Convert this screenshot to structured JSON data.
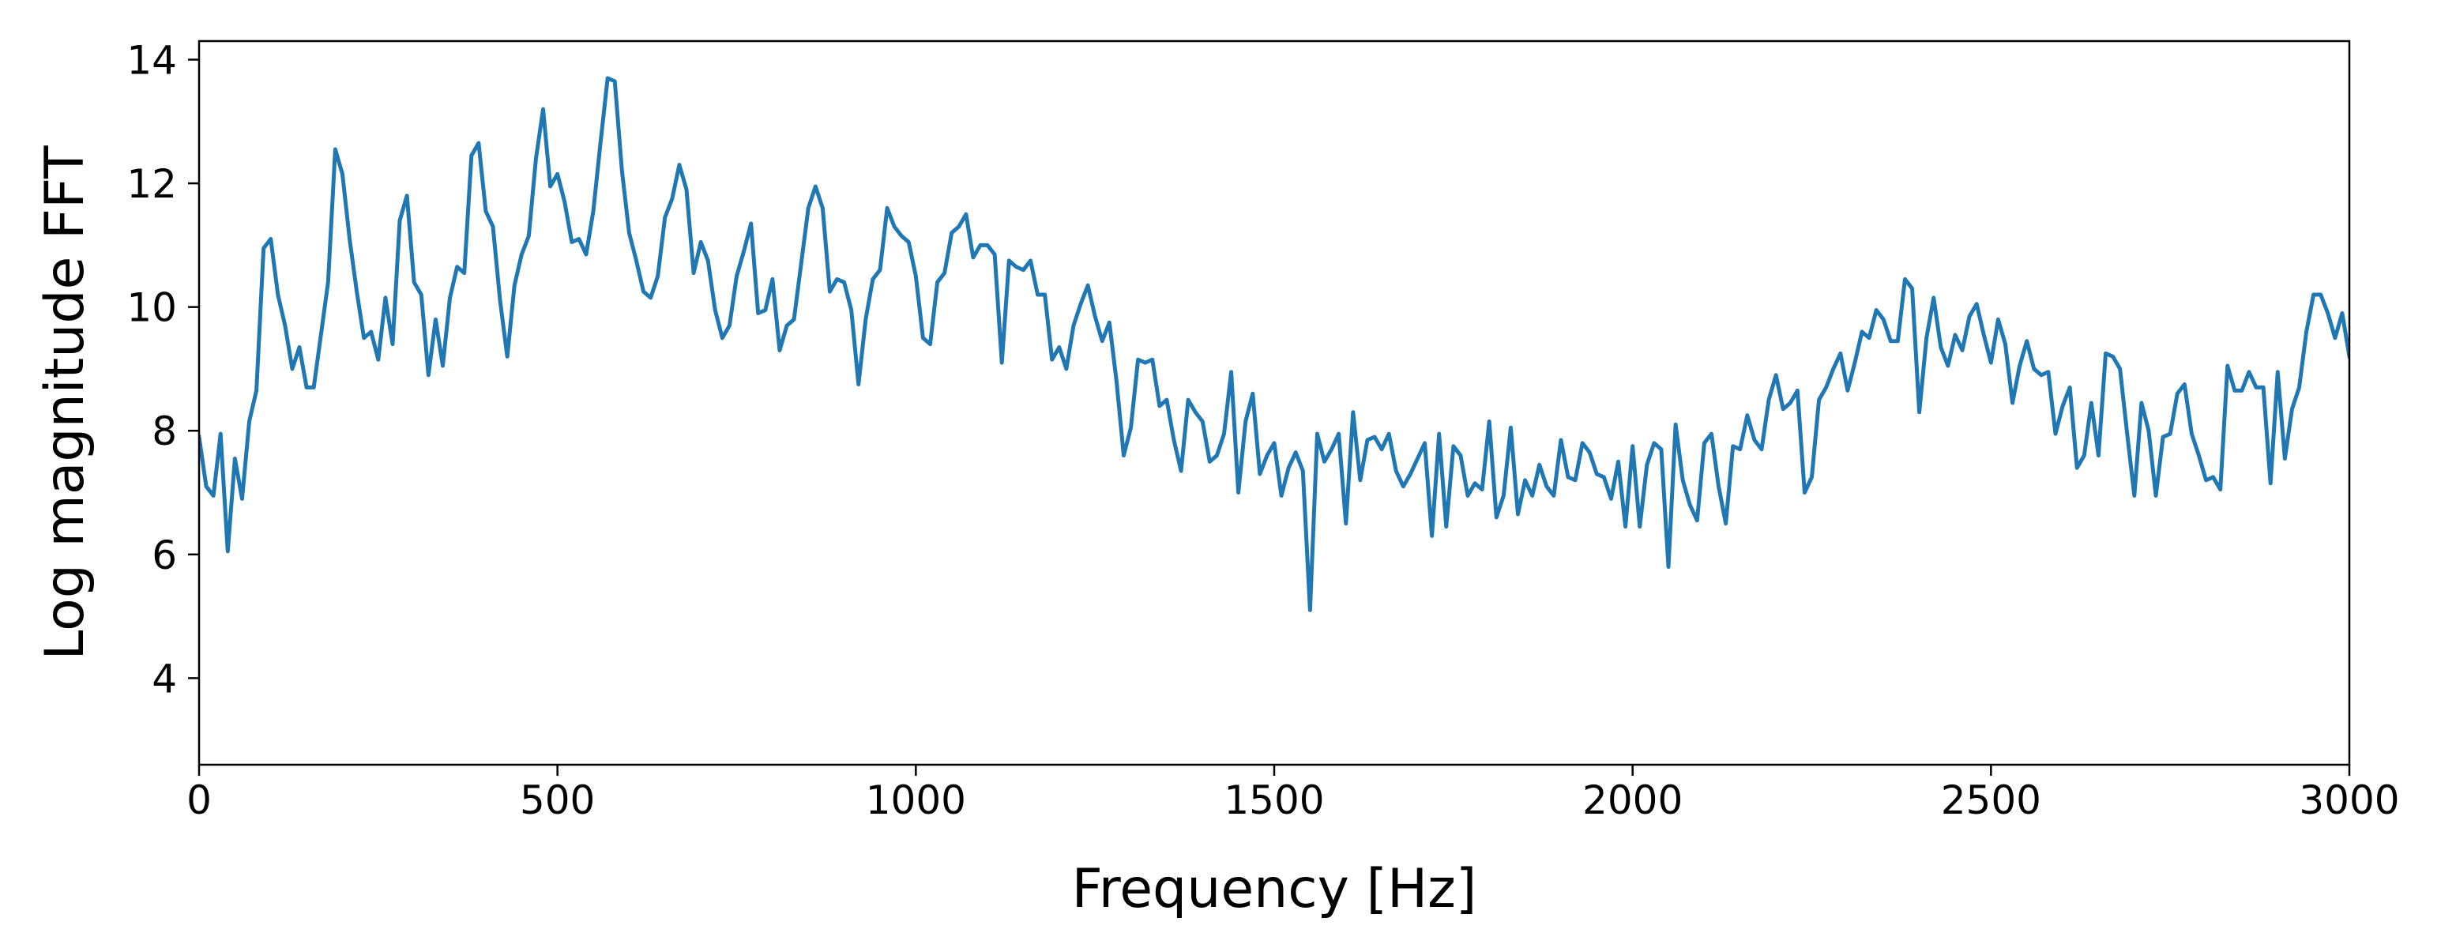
{
  "chart_data": {
    "type": "line",
    "title": "",
    "xlabel": "Frequency [Hz]",
    "ylabel": "Log magnitude FFT",
    "xlim": [
      0,
      3000
    ],
    "ylim": [
      2.6,
      14.3
    ],
    "xticks": [
      0,
      500,
      1000,
      1500,
      2000,
      2500,
      3000
    ],
    "xtick_labels": [
      "0",
      "500",
      "1000",
      "1500",
      "2000",
      "2500",
      "3000"
    ],
    "yticks": [
      4,
      6,
      8,
      10,
      12,
      14
    ],
    "ytick_labels": [
      "4",
      "6",
      "8",
      "10",
      "12",
      "14"
    ],
    "grid": false,
    "legend": "none",
    "line_color": "#1f77b4",
    "series": [
      {
        "x": [
          0,
          10,
          20,
          30,
          40,
          50,
          60,
          70,
          80,
          90,
          100,
          110,
          120,
          130,
          140,
          150,
          160,
          170,
          180,
          190,
          200,
          210,
          220,
          230,
          240,
          250,
          260,
          270,
          280,
          290,
          300,
          310,
          320,
          330,
          340,
          350,
          360,
          370,
          380,
          390,
          400,
          410,
          420,
          430,
          440,
          450,
          460,
          470,
          480,
          490,
          500,
          510,
          520,
          530,
          540,
          550,
          560,
          570,
          580,
          590,
          600,
          610,
          620,
          630,
          640,
          650,
          660,
          670,
          680,
          690,
          700,
          710,
          720,
          730,
          740,
          750,
          760,
          770,
          780,
          790,
          800,
          810,
          820,
          830,
          840,
          850,
          860,
          870,
          880,
          890,
          900,
          910,
          920,
          930,
          940,
          950,
          960,
          970,
          980,
          990,
          1000,
          1010,
          1020,
          1030,
          1040,
          1050,
          1060,
          1070,
          1080,
          1090,
          1100,
          1110,
          1120,
          1130,
          1140,
          1150,
          1160,
          1170,
          1180,
          1190,
          1200,
          1210,
          1220,
          1230,
          1240,
          1250,
          1260,
          1270,
          1280,
          1290,
          1300,
          1310,
          1320,
          1330,
          1340,
          1350,
          1360,
          1370,
          1380,
          1390,
          1400,
          1410,
          1420,
          1430,
          1440,
          1450,
          1460,
          1470,
          1480,
          1490,
          1500,
          1510,
          1520,
          1530,
          1540,
          1550,
          1560,
          1570,
          1580,
          1590,
          1600,
          1610,
          1620,
          1630,
          1640,
          1650,
          1660,
          1670,
          1680,
          1690,
          1700,
          1710,
          1720,
          1730,
          1740,
          1750,
          1760,
          1770,
          1780,
          1790,
          1800,
          1810,
          1820,
          1830,
          1840,
          1850,
          1860,
          1870,
          1880,
          1890,
          1900,
          1910,
          1920,
          1930,
          1940,
          1950,
          1960,
          1970,
          1980,
          1990,
          2000,
          2010,
          2020,
          2030,
          2040,
          2050,
          2060,
          2070,
          2080,
          2090,
          2100,
          2110,
          2120,
          2130,
          2140,
          2150,
          2160,
          2170,
          2180,
          2190,
          2200,
          2210,
          2220,
          2230,
          2240,
          2250,
          2260,
          2270,
          2280,
          2290,
          2300,
          2310,
          2320,
          2330,
          2340,
          2350,
          2360,
          2370,
          2380,
          2390,
          2400,
          2410,
          2420,
          2430,
          2440,
          2450,
          2460,
          2470,
          2480,
          2490,
          2500,
          2510,
          2520,
          2530,
          2540,
          2550,
          2560,
          2570,
          2580,
          2590,
          2600,
          2610,
          2620,
          2630,
          2640,
          2650,
          2660,
          2670,
          2680,
          2690,
          2700,
          2710,
          2720,
          2730,
          2740,
          2750,
          2760,
          2770,
          2780,
          2790,
          2800,
          2810,
          2820,
          2830,
          2840,
          2850,
          2860,
          2870,
          2880,
          2890,
          2900,
          2910,
          2920,
          2930,
          2940,
          2950,
          2960,
          2970,
          2980,
          2990,
          3000
        ],
        "y": [
          7.9,
          7.1,
          6.95,
          7.95,
          6.05,
          7.55,
          6.9,
          8.15,
          8.65,
          10.95,
          11.1,
          10.2,
          9.7,
          9.0,
          9.35,
          8.7,
          8.7,
          9.55,
          10.4,
          12.55,
          12.15,
          11.1,
          10.25,
          9.5,
          9.6,
          9.15,
          10.15,
          9.4,
          11.4,
          11.8,
          10.4,
          10.2,
          8.9,
          9.8,
          9.05,
          10.15,
          10.65,
          10.55,
          12.45,
          12.65,
          11.55,
          11.3,
          10.1,
          9.2,
          10.35,
          10.85,
          11.15,
          12.4,
          13.2,
          11.95,
          12.15,
          11.7,
          11.05,
          11.1,
          10.85,
          11.55,
          12.65,
          13.7,
          13.65,
          12.2,
          11.2,
          10.75,
          10.25,
          10.15,
          10.5,
          11.45,
          11.75,
          12.3,
          11.9,
          10.55,
          11.05,
          10.75,
          9.95,
          9.5,
          9.7,
          10.5,
          10.9,
          11.35,
          9.9,
          9.95,
          10.45,
          9.3,
          9.7,
          9.8,
          10.7,
          11.6,
          11.95,
          11.6,
          10.25,
          10.45,
          10.4,
          9.95,
          8.75,
          9.8,
          10.45,
          10.6,
          11.6,
          11.3,
          11.15,
          11.05,
          10.5,
          9.5,
          9.4,
          10.4,
          10.55,
          11.2,
          11.3,
          11.5,
          10.8,
          11.0,
          11.0,
          10.85,
          9.1,
          10.75,
          10.65,
          10.6,
          10.75,
          10.2,
          10.2,
          9.15,
          9.35,
          9.0,
          9.7,
          10.05,
          10.35,
          9.85,
          9.45,
          9.75,
          8.8,
          7.6,
          8.05,
          9.15,
          9.1,
          9.15,
          8.4,
          8.5,
          7.85,
          7.35,
          8.5,
          8.3,
          8.15,
          7.5,
          7.6,
          7.95,
          8.95,
          7.0,
          8.15,
          8.6,
          7.3,
          7.6,
          7.8,
          6.95,
          7.4,
          7.65,
          7.35,
          5.1,
          7.95,
          7.5,
          7.7,
          7.95,
          6.5,
          8.3,
          7.2,
          7.85,
          7.9,
          7.7,
          7.95,
          7.35,
          7.1,
          7.3,
          7.55,
          7.8,
          6.3,
          7.95,
          6.45,
          7.75,
          7.6,
          6.95,
          7.15,
          7.05,
          8.15,
          6.6,
          6.95,
          8.05,
          6.65,
          7.2,
          6.95,
          7.45,
          7.1,
          6.95,
          7.85,
          7.25,
          7.2,
          7.8,
          7.65,
          7.3,
          7.25,
          6.9,
          7.5,
          6.45,
          7.75,
          6.45,
          7.45,
          7.8,
          7.7,
          5.8,
          8.1,
          7.2,
          6.8,
          6.55,
          7.8,
          7.95,
          7.1,
          6.5,
          7.75,
          7.7,
          8.25,
          7.85,
          7.7,
          8.5,
          8.9,
          8.35,
          8.45,
          8.65,
          7.0,
          7.25,
          8.5,
          8.7,
          9.0,
          9.25,
          8.65,
          9.1,
          9.6,
          9.5,
          9.95,
          9.8,
          9.45,
          9.45,
          10.45,
          10.3,
          8.3,
          9.5,
          10.15,
          9.35,
          9.05,
          9.55,
          9.3,
          9.85,
          10.05,
          9.55,
          9.1,
          9.8,
          9.4,
          8.45,
          9.05,
          9.45,
          9.0,
          8.9,
          8.95,
          7.95,
          8.4,
          8.7,
          7.4,
          7.6,
          8.45,
          7.6,
          9.25,
          9.2,
          9.0,
          7.95,
          6.95,
          8.45,
          8.0,
          6.95,
          7.9,
          7.95,
          8.6,
          8.75,
          7.95,
          7.6,
          7.2,
          7.25,
          7.05,
          9.05,
          8.65,
          8.65,
          8.95,
          8.7,
          8.7,
          7.15,
          8.95,
          7.55,
          8.35,
          8.7,
          9.6,
          10.2,
          10.2,
          9.9,
          9.5,
          9.9,
          9.2
        ]
      }
    ]
  }
}
